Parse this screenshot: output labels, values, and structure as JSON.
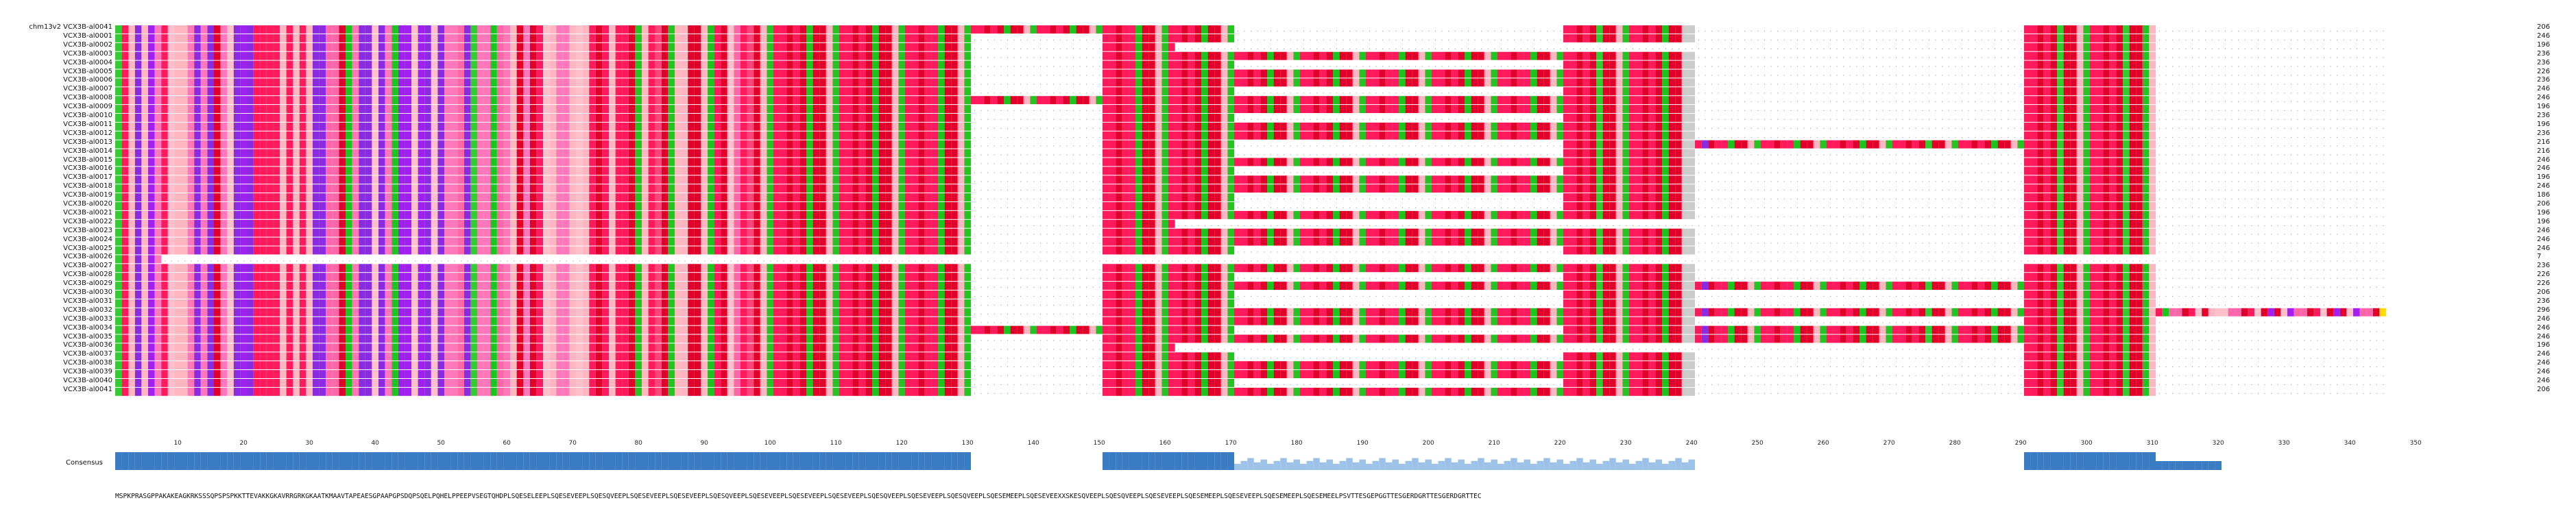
{
  "alignment": {
    "rows": [
      {
        "name": "chm13v2 VCX3B-al0041",
        "count": "206"
      },
      {
        "name": "VCX3B-al0001",
        "count": "246"
      },
      {
        "name": "VCX3B-al0002",
        "count": "196"
      },
      {
        "name": "VCX3B-al0003",
        "count": "236"
      },
      {
        "name": "VCX3B-al0004",
        "count": "236"
      },
      {
        "name": "VCX3B-al0005",
        "count": "226"
      },
      {
        "name": "VCX3B-al0006",
        "count": "236"
      },
      {
        "name": "VCX3B-al0007",
        "count": "246"
      },
      {
        "name": "VCX3B-al0008",
        "count": "246"
      },
      {
        "name": "VCX3B-al0009",
        "count": "196"
      },
      {
        "name": "VCX3B-al0010",
        "count": "236"
      },
      {
        "name": "VCX3B-al0011",
        "count": "196"
      },
      {
        "name": "VCX3B-al0012",
        "count": "236"
      },
      {
        "name": "VCX3B-al0013",
        "count": "216"
      },
      {
        "name": "VCX3B-al0014",
        "count": "216"
      },
      {
        "name": "VCX3B-al0015",
        "count": "246"
      },
      {
        "name": "VCX3B-al0016",
        "count": "246"
      },
      {
        "name": "VCX3B-al0017",
        "count": "196"
      },
      {
        "name": "VCX3B-al0018",
        "count": "246"
      },
      {
        "name": "VCX3B-al0019",
        "count": "186"
      },
      {
        "name": "VCX3B-al0020",
        "count": "206"
      },
      {
        "name": "VCX3B-al0021",
        "count": "196"
      },
      {
        "name": "VCX3B-al0022",
        "count": "196"
      },
      {
        "name": "VCX3B-al0023",
        "count": "246"
      },
      {
        "name": "VCX3B-al0024",
        "count": "246"
      },
      {
        "name": "VCX3B-al0025",
        "count": "246"
      },
      {
        "name": "VCX3B-al0026",
        "count": "7"
      },
      {
        "name": "VCX3B-al0027",
        "count": "236"
      },
      {
        "name": "VCX3B-al0028",
        "count": "226"
      },
      {
        "name": "VCX3B-al0029",
        "count": "226"
      },
      {
        "name": "VCX3B-al0030",
        "count": "206"
      },
      {
        "name": "VCX3B-al0031",
        "count": "236"
      },
      {
        "name": "VCX3B-al0032",
        "count": "296"
      },
      {
        "name": "VCX3B-al0033",
        "count": "246"
      },
      {
        "name": "VCX3B-al0034",
        "count": "246"
      },
      {
        "name": "VCX3B-al0035",
        "count": "246"
      },
      {
        "name": "VCX3B-al0036",
        "count": "196"
      },
      {
        "name": "VCX3B-al0037",
        "count": "246"
      },
      {
        "name": "VCX3B-al0038",
        "count": "246"
      },
      {
        "name": "VCX3B-al0039",
        "count": "246"
      },
      {
        "name": "VCX3B-al0040",
        "count": "246"
      },
      {
        "name": "VCX3B-al0041",
        "count": "206"
      }
    ],
    "ruler_ticks": [
      "10",
      "20",
      "30",
      "40",
      "50",
      "60",
      "70",
      "80",
      "90",
      "100",
      "110",
      "120",
      "130",
      "140",
      "150",
      "160",
      "170",
      "180",
      "190",
      "200",
      "210",
      "220",
      "230",
      "240",
      "250",
      "260",
      "270",
      "280",
      "290",
      "300",
      "310",
      "320",
      "330",
      "340",
      "350"
    ],
    "consensus_label": "Consensus",
    "consensus_sequence": "MSPKPRASGPPAKAKEAGKRKSSSQPSPSPKKTTEVAKKGKAVRRGRKGKAATKMAAVTAPEAESGPAAPGPSDQPSQELPQHELPPEEPVSEGTQHDPLSQESELEEPLSQESEVEEPLSQESQVEEPLSQESEVEEPLSQESEVEEPLSQESQVEEPLSQESEVEEPLSQESEVEEPLSQESEVEEPLSQESQVEEPLSQESEVEEPLSQESQVEEPLSQESEMEEPLSQESEVEEXXSKESQVEEPLSQESQVEEPLSQESEVEEPLSQESEMEEPLSQESEVEEPLSQESEMEEPLSQESEMEELPSVTTESGEPGGTTESGERDGRTTESGERDGRTTEC",
    "colors": {
      "K": "#8a2be2",
      "R": "#a020f0",
      "S": "#ff1a5e",
      "Q": "#ff1a5e",
      "E": "#e0002a",
      "D": "#e0002a",
      "V": "#1dc41d",
      "L": "#22c422",
      "P": "#ffb6c1",
      "A": "#ff77bb",
      "G": "#ffc0cb",
      "T": "#ff66aa",
      "M": "#33cc33",
      "H": "#ff4477",
      "F": "#22bb22",
      "C": "#ffdd00",
      "X": "#cccccc",
      "consensus_bar": "#3a7cc4",
      "consensus_bar_light": "#9cc2e8"
    }
  }
}
